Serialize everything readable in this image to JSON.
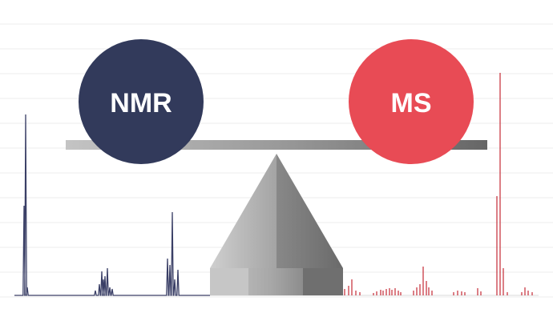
{
  "left_circle": {
    "label": "NMR",
    "color": "#323a5b"
  },
  "right_circle": {
    "label": "MS",
    "color": "#e84b55"
  },
  "colors": {
    "nmr_spectrum": "#3a3f66",
    "ms_spectrum": "#c93a44",
    "beam_light": "#bdbdbd",
    "beam_dark": "#707070",
    "fulcrum_light": "#c9c9c9",
    "fulcrum_dark": "#6d6d6d",
    "gridline": "#ececec"
  },
  "icons": [
    "balance-scale-icon"
  ]
}
